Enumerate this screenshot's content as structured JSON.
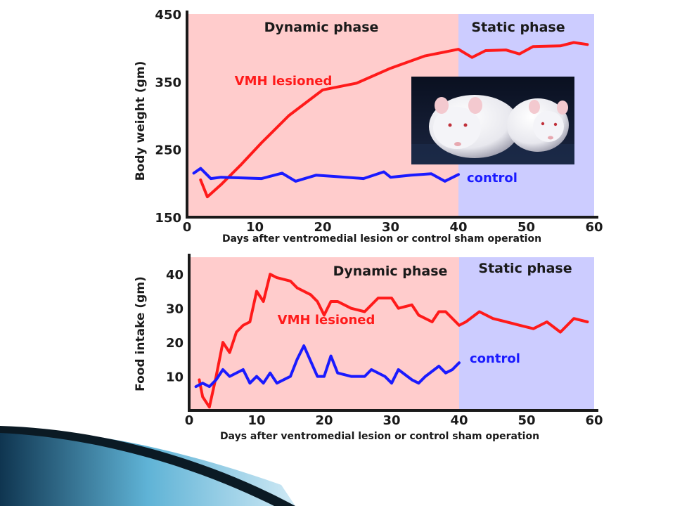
{
  "colors": {
    "dynamic_bg": "#ffcccc",
    "static_bg": "#ccccff",
    "vmh": "#ff1a1a",
    "control": "#1a1aff",
    "axis": "#1a1a1a",
    "slide_dark": "#123a52",
    "slide_light": "#7fc6e4"
  },
  "photo": {
    "icon": "two-rats-photo"
  },
  "chart_data": [
    {
      "type": "line",
      "title": "",
      "xlabel": "Days after ventromedial lesion or control sham operation",
      "ylabel": "Body weight (gm)",
      "xlim": [
        0,
        60
      ],
      "ylim": [
        150,
        450
      ],
      "xticks": [
        0,
        10,
        20,
        30,
        40,
        50,
        60
      ],
      "yticks": [
        150,
        250,
        350,
        450
      ],
      "phases": [
        {
          "label": "Dynamic phase",
          "x0": 0,
          "x1": 40
        },
        {
          "label": "Static phase",
          "x0": 40,
          "x1": 60
        }
      ],
      "series": [
        {
          "name": "VMH lesioned",
          "color": "#ff1a1a",
          "x": [
            2,
            3,
            5,
            8,
            11,
            15,
            20,
            25,
            30,
            35,
            40,
            42,
            44,
            47,
            49,
            51,
            55,
            57,
            59
          ],
          "y": [
            205,
            180,
            198,
            228,
            260,
            300,
            338,
            348,
            370,
            388,
            398,
            386,
            396,
            397,
            391,
            402,
            403,
            408,
            405
          ]
        },
        {
          "name": "control",
          "color": "#1a1aff",
          "x": [
            1,
            2,
            3.5,
            5,
            8,
            11,
            14,
            16,
            19,
            22,
            26,
            29,
            30,
            33,
            36,
            38,
            40
          ],
          "y": [
            215,
            222,
            207,
            209,
            208,
            207,
            215,
            203,
            212,
            210,
            207,
            217,
            209,
            212,
            214,
            203,
            213
          ]
        }
      ]
    },
    {
      "type": "line",
      "title": "",
      "xlabel": "Days after ventromedial lesion or control sham operation",
      "ylabel": "Food intake (gm)",
      "xlim": [
        0,
        60
      ],
      "ylim": [
        0,
        45
      ],
      "xticks": [
        0,
        10,
        20,
        30,
        40,
        50,
        60
      ],
      "yticks": [
        10,
        20,
        30,
        40
      ],
      "phases": [
        {
          "label": "Dynamic phase",
          "x0": 0,
          "x1": 40
        },
        {
          "label": "Static phase",
          "x0": 40,
          "x1": 60
        }
      ],
      "series": [
        {
          "name": "VMH lesioned",
          "color": "#ff1a1a",
          "x": [
            1.5,
            2,
            3,
            4,
            5,
            6,
            7,
            8,
            9,
            10,
            11,
            12,
            13,
            15,
            16,
            18,
            19,
            20,
            21,
            22,
            24,
            26,
            28,
            30,
            31,
            33,
            34,
            36,
            37,
            38,
            40,
            41,
            43,
            45,
            47,
            49,
            51,
            53,
            55,
            57,
            59
          ],
          "y": [
            9,
            4,
            1,
            10,
            20,
            17,
            23,
            25,
            26,
            35,
            32,
            40,
            39,
            38,
            36,
            34,
            32,
            28,
            32,
            32,
            30,
            29,
            33,
            33,
            30,
            31,
            28,
            26,
            29,
            29,
            25,
            26,
            29,
            27,
            26,
            25,
            24,
            26,
            23,
            27,
            26
          ]
        },
        {
          "name": "control",
          "color": "#1a1aff",
          "x": [
            1,
            2,
            3,
            4,
            5,
            6,
            8,
            9,
            10,
            11,
            12,
            13,
            15,
            16,
            17,
            19,
            20,
            21,
            22,
            24,
            26,
            27,
            29,
            30,
            31,
            33,
            34,
            35,
            37,
            38,
            39,
            40
          ],
          "y": [
            7,
            8,
            7,
            9,
            12,
            10,
            12,
            8,
            10,
            8,
            11,
            8,
            10,
            15,
            19,
            10,
            10,
            16,
            11,
            10,
            10,
            12,
            10,
            8,
            12,
            9,
            8,
            10,
            13,
            11,
            12,
            14
          ]
        }
      ]
    }
  ],
  "labels": {
    "top": {
      "dynamic": "Dynamic phase",
      "static": "Static phase",
      "vmh": "VMH lesioned",
      "control": "control",
      "ylabel": "Body weight (gm)",
      "xlabel": "Days after ventromedial lesion or control sham operation",
      "xticks": [
        "0",
        "10",
        "20",
        "30",
        "40",
        "50",
        "60"
      ],
      "yticks": [
        "150",
        "250",
        "350",
        "450"
      ]
    },
    "bottom": {
      "dynamic": "Dynamic phase",
      "static": "Static phase",
      "vmh": "VMH lesioned",
      "control": "control",
      "ylabel": "Food intake (gm)",
      "xlabel": "Days after ventromedial lesion or control sham operation",
      "xticks": [
        "0",
        "10",
        "20",
        "30",
        "40",
        "50",
        "60"
      ],
      "yticks": [
        "10",
        "20",
        "30",
        "40"
      ]
    }
  }
}
